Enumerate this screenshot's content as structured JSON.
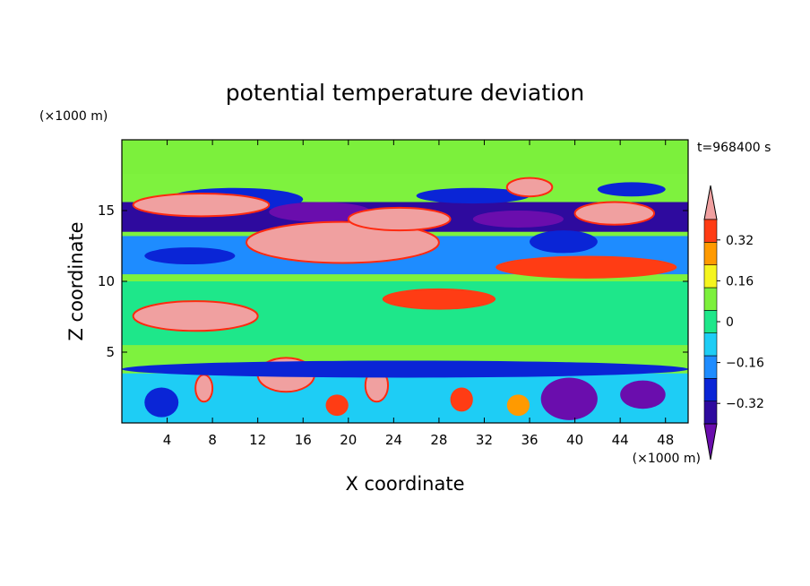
{
  "chart_data": {
    "type": "heatmap",
    "title": "potential temperature deviation",
    "xlabel": "X coordinate",
    "ylabel": "Z coordinate",
    "x_unit": "(×1000 m)",
    "y_unit": "(×1000 m)",
    "time_label": "t=968400 s",
    "xlim": [
      0,
      50
    ],
    "ylim": [
      0,
      20
    ],
    "x_ticks": [
      4,
      8,
      12,
      16,
      20,
      24,
      28,
      32,
      36,
      40,
      44,
      48
    ],
    "y_ticks": [
      5,
      10,
      15
    ],
    "colorbar": {
      "levels": [
        -0.4,
        -0.32,
        -0.24,
        -0.16,
        -0.08,
        0,
        0.08,
        0.16,
        0.24,
        0.32,
        0.4
      ],
      "tick_labels": [
        "0.32",
        "0.16",
        "0",
        "−0.16",
        "−0.32"
      ],
      "tick_values": [
        0.32,
        0.16,
        0,
        -0.16,
        -0.32
      ],
      "colors": [
        "#6a0dad",
        "#2e0a9e",
        "#0a25d6",
        "#1e8cff",
        "#1ecdf5",
        "#1ee78a",
        "#7cf03c",
        "#f5f51e",
        "#ff9a00",
        "#ff3c14",
        "#f0a0a0"
      ]
    },
    "background_color": "#7ef23e",
    "features": [
      {
        "shape": "band",
        "x": [
          0,
          50
        ],
        "z": [
          17.6,
          20
        ],
        "value": 0.02
      },
      {
        "shape": "band",
        "x": [
          0,
          50
        ],
        "z": [
          13.5,
          15.6
        ],
        "value": -0.34
      },
      {
        "shape": "band",
        "x": [
          0,
          50
        ],
        "z": [
          10.5,
          13.2
        ],
        "value": -0.18
      },
      {
        "shape": "band",
        "x": [
          0,
          50
        ],
        "z": [
          5.5,
          10
        ],
        "value": -0.05
      },
      {
        "shape": "band",
        "x": [
          0,
          50
        ],
        "z": [
          0,
          3.5
        ],
        "value": -0.16
      },
      {
        "shape": "blob",
        "x": [
          4,
          16
        ],
        "z": [
          15,
          16.6
        ],
        "value": -0.3
      },
      {
        "shape": "blob",
        "x": [
          13,
          22
        ],
        "z": [
          14.2,
          15.6
        ],
        "value": -0.4
      },
      {
        "shape": "blob",
        "x": [
          26,
          36
        ],
        "z": [
          15.5,
          16.6
        ],
        "value": -0.3
      },
      {
        "shape": "blob",
        "x": [
          31,
          39
        ],
        "z": [
          13.8,
          15
        ],
        "value": -0.4
      },
      {
        "shape": "blob",
        "x": [
          42,
          48
        ],
        "z": [
          16,
          17
        ],
        "value": -0.3
      },
      {
        "shape": "blob",
        "x": [
          2,
          10
        ],
        "z": [
          11.2,
          12.4
        ],
        "value": -0.28
      },
      {
        "shape": "blob",
        "x": [
          36,
          42
        ],
        "z": [
          12,
          13.6
        ],
        "value": -0.28
      },
      {
        "shape": "blob",
        "x": [
          1,
          13
        ],
        "z": [
          14.6,
          16.2
        ],
        "value": 0.4
      },
      {
        "shape": "blob",
        "x": [
          11,
          28
        ],
        "z": [
          11.3,
          14.2
        ],
        "value": 0.4
      },
      {
        "shape": "blob",
        "x": [
          20,
          29
        ],
        "z": [
          13.6,
          15.2
        ],
        "value": 0.36
      },
      {
        "shape": "blob",
        "x": [
          34,
          38
        ],
        "z": [
          16,
          17.3
        ],
        "value": 0.4
      },
      {
        "shape": "blob",
        "x": [
          40,
          47
        ],
        "z": [
          14,
          15.6
        ],
        "value": 0.4
      },
      {
        "shape": "blob",
        "x": [
          33,
          49
        ],
        "z": [
          10.2,
          11.8
        ],
        "value": 0.3
      },
      {
        "shape": "blob",
        "x": [
          1,
          12
        ],
        "z": [
          6.5,
          8.6
        ],
        "value": 0.4
      },
      {
        "shape": "blob",
        "x": [
          23,
          33
        ],
        "z": [
          8,
          9.5
        ],
        "value": 0.25
      },
      {
        "shape": "blob",
        "x": [
          12,
          17
        ],
        "z": [
          2.2,
          4.6
        ],
        "value": 0.4
      },
      {
        "shape": "blob",
        "x": [
          21.5,
          23.5
        ],
        "z": [
          1.5,
          3.8
        ],
        "value": 0.4
      },
      {
        "shape": "blob",
        "x": [
          6.5,
          8
        ],
        "z": [
          1.5,
          3.4
        ],
        "value": 0.35
      },
      {
        "shape": "blob",
        "x": [
          0,
          50
        ],
        "z": [
          3.2,
          4.4
        ],
        "value": -0.3
      },
      {
        "shape": "blob",
        "x": [
          37,
          42
        ],
        "z": [
          0.2,
          3.2
        ],
        "value": -0.4
      },
      {
        "shape": "blob",
        "x": [
          44,
          48
        ],
        "z": [
          1,
          3
        ],
        "value": -0.4
      },
      {
        "shape": "blob",
        "x": [
          2,
          5
        ],
        "z": [
          0.4,
          2.5
        ],
        "value": -0.32
      },
      {
        "shape": "blob",
        "x": [
          18,
          20
        ],
        "z": [
          0.5,
          2
        ],
        "value": 0.3
      },
      {
        "shape": "blob",
        "x": [
          29,
          31
        ],
        "z": [
          0.8,
          2.5
        ],
        "value": 0.3
      },
      {
        "shape": "blob",
        "x": [
          34,
          36
        ],
        "z": [
          0.5,
          2
        ],
        "value": 0.2
      }
    ]
  }
}
